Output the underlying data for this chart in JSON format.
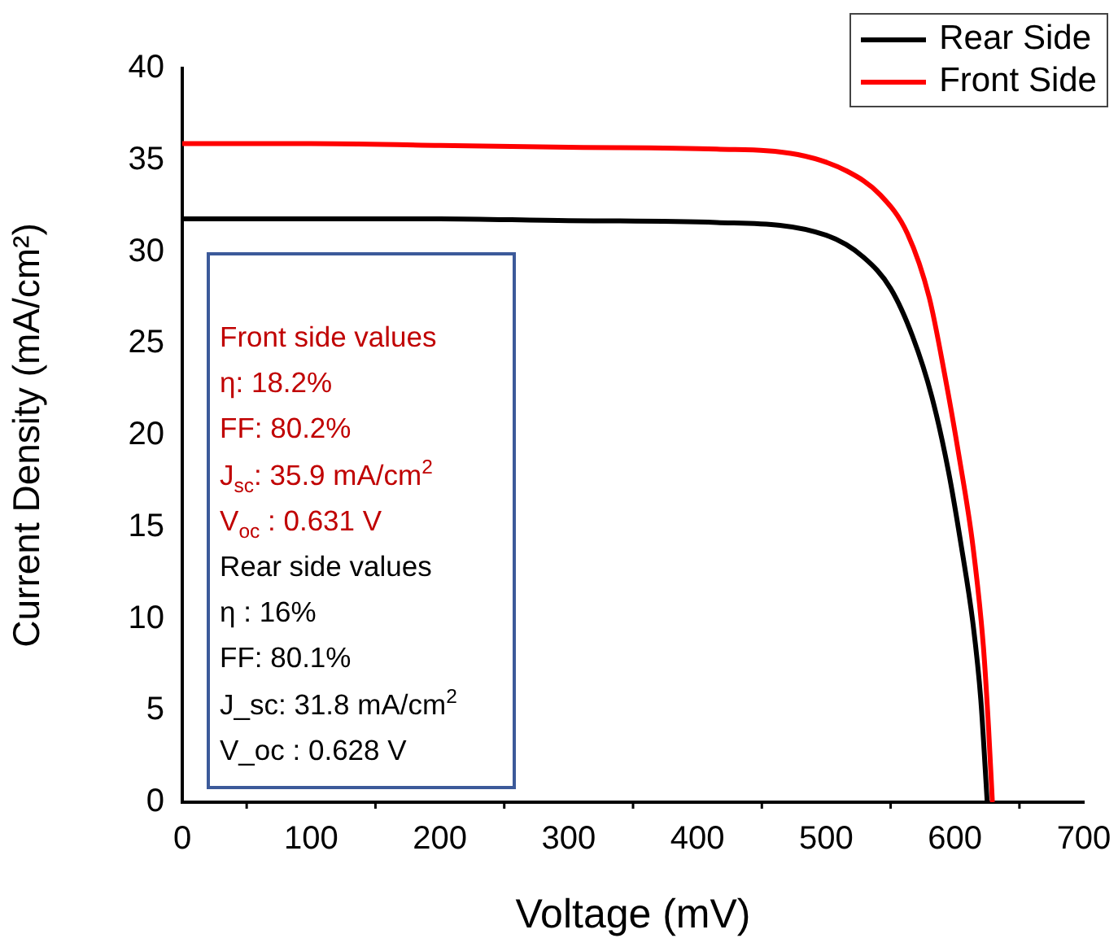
{
  "chart_data": {
    "type": "line",
    "xlabel": "Voltage (mV)",
    "ylabel": "Current Density (mA/cm²)",
    "xlim": [
      0,
      700
    ],
    "xticks": [
      0,
      100,
      200,
      300,
      400,
      500,
      600,
      700
    ],
    "ylim": [
      0,
      40
    ],
    "yticks": [
      0,
      5,
      10,
      15,
      20,
      25,
      30,
      35,
      40
    ],
    "legend": "top right",
    "grid": false,
    "marker": "none",
    "line_style": "solid",
    "series": [
      {
        "name": "Rear Side",
        "color": "#000000",
        "x": [
          0,
          100,
          200,
          300,
          415,
          500,
          529,
          550,
          567,
          582,
          595,
          605,
          614,
          620,
          625
        ],
        "values": [
          31.8,
          31.8,
          31.8,
          31.7,
          31.6,
          30.9,
          29.7,
          28.0,
          25.4,
          22.1,
          18.0,
          13.9,
          9.7,
          5.6,
          0
        ]
      },
      {
        "name": "Front Side",
        "color": "#ff0000",
        "x": [
          0,
          100,
          200,
          300,
          415,
          478,
          516,
          542,
          563,
          580,
          592,
          603,
          614,
          622,
          626,
          629
        ],
        "values": [
          35.9,
          35.9,
          35.8,
          35.7,
          35.6,
          35.3,
          34.4,
          33.1,
          31.0,
          27.5,
          23.3,
          18.9,
          13.9,
          8.5,
          4.1,
          0
        ]
      }
    ],
    "annotations": [
      "Front side values",
      "η: 18.2%",
      "FF: 80.2%",
      "J$_{sc}$: 35.9 mA/cm$^{2}$",
      "V$_{oc}$ : 0.631 V",
      "Rear side values",
      "η : 16%",
      "FF: 80.1%",
      "J_sc: 31.8 mA/cm$^{2}$",
      "V_oc : 0.628 V"
    ]
  }
}
